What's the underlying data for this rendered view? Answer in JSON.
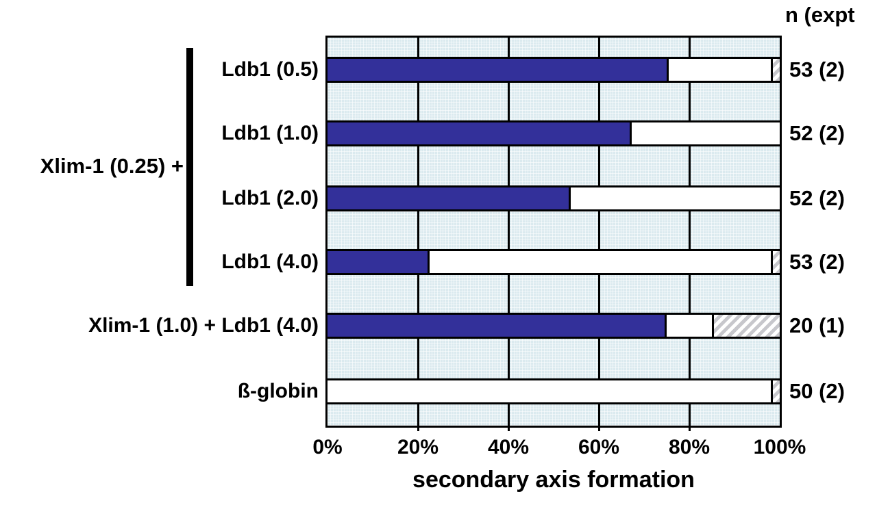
{
  "chart_data": {
    "type": "bar",
    "orientation": "horizontal",
    "stacked": true,
    "xlabel": "secondary axis formation",
    "xlim": [
      0,
      100
    ],
    "x_tick_labels": [
      "0%",
      "20%",
      "40%",
      "60%",
      "80%",
      "100%"
    ],
    "grid": true,
    "legend": "none",
    "n_column_header": "n (expt",
    "group_bracket": {
      "label": "Xlim-1 (0.25) +",
      "applies_to": [
        "Ldb1 (0.5)",
        "Ldb1 (1.0)",
        "Ldb1 (2.0)",
        "Ldb1 (4.0)"
      ]
    },
    "categories": [
      "Ldb1 (0.5)",
      "Ldb1 (1.0)",
      "Ldb1 (2.0)",
      "Ldb1 (4.0)",
      "Xlim-1 (1.0) + Ldb1 (4.0)",
      "ß-globin"
    ],
    "n_values": [
      "53 (2)",
      "52 (2)",
      "52 (2)",
      "53 (2)",
      "20 (1)",
      "50 (2)"
    ],
    "series": [
      {
        "name": "solid-dark-segment",
        "color": "#33309a",
        "values": [
          75.5,
          67.3,
          53.8,
          22.6,
          75,
          0
        ]
      },
      {
        "name": "white-segment",
        "color": "#ffffff",
        "values": [
          22.6,
          32.7,
          46.2,
          75.5,
          10,
          98
        ]
      },
      {
        "name": "hatched-segment",
        "color": "diagonal-gray-stripes",
        "values": [
          1.9,
          0,
          0,
          1.9,
          15,
          2
        ]
      }
    ],
    "colors": {
      "solid": "#33309a",
      "plot_background": "#dbeaef",
      "hatch_stripe": "#c7c7cc",
      "line": "#000000"
    }
  }
}
